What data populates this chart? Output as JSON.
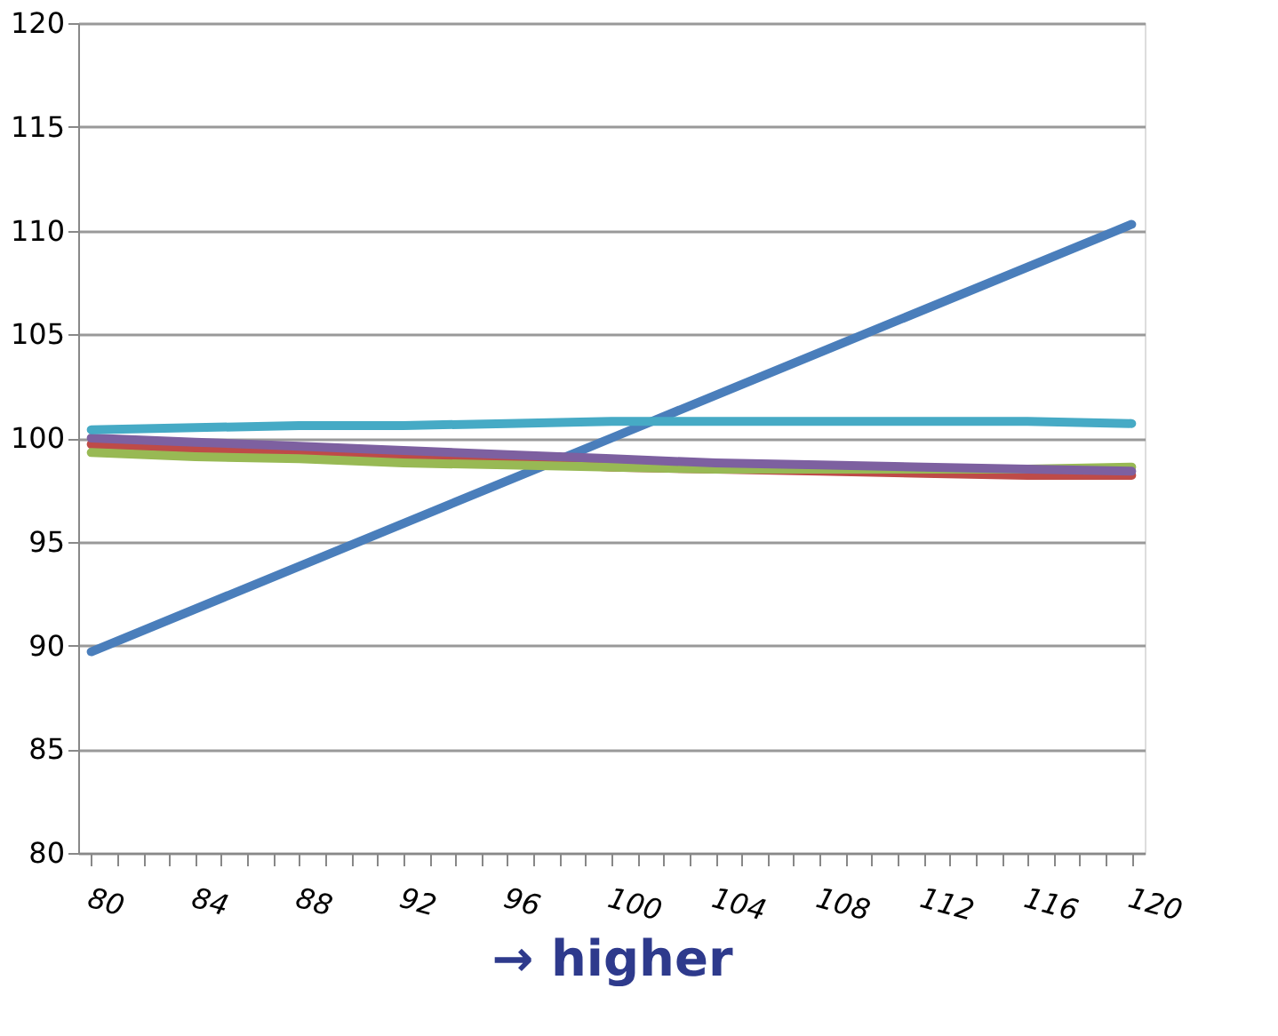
{
  "chart_data": {
    "type": "line",
    "xlabel": "→ higher",
    "xlim": [
      79.5,
      120.5
    ],
    "ylim": [
      80,
      120
    ],
    "yticks": [
      80,
      85,
      90,
      95,
      100,
      105,
      110,
      115,
      120
    ],
    "xticks": [
      80,
      {
        "value": 81,
        "label": null
      },
      {
        "value": 82,
        "label": null
      },
      {
        "value": 83,
        "label": null
      },
      84,
      {
        "value": 85,
        "label": null
      },
      {
        "value": 86,
        "label": null
      },
      {
        "value": 87,
        "label": null
      },
      88,
      {
        "value": 89,
        "label": null
      },
      {
        "value": 90,
        "label": null
      },
      {
        "value": 91,
        "label": null
      },
      92,
      {
        "value": 93,
        "label": null
      },
      {
        "value": 94,
        "label": null
      },
      {
        "value": 95,
        "label": null
      },
      96,
      {
        "value": 97,
        "label": null
      },
      {
        "value": 98,
        "label": null
      },
      {
        "value": 99,
        "label": null
      },
      100,
      {
        "value": 101,
        "label": null
      },
      {
        "value": 102,
        "label": null
      },
      {
        "value": 103,
        "label": null
      },
      104,
      {
        "value": 105,
        "label": null
      },
      {
        "value": 106,
        "label": null
      },
      {
        "value": 107,
        "label": null
      },
      108,
      {
        "value": 109,
        "label": null
      },
      {
        "value": 110,
        "label": null
      },
      {
        "value": 111,
        "label": null
      },
      112,
      {
        "value": 113,
        "label": null
      },
      {
        "value": 114,
        "label": null
      },
      {
        "value": 115,
        "label": null
      },
      116,
      {
        "value": 117,
        "label": null
      },
      {
        "value": 118,
        "label": null
      },
      {
        "value": 119,
        "label": null
      },
      120
    ],
    "grid": "y",
    "legend": false,
    "marker": "none",
    "line_style": "solid",
    "series": [
      {
        "color": "#4a7ebb",
        "x": [
          80,
          100,
          120
        ],
        "values": [
          89.7,
          100.0,
          110.3
        ]
      },
      {
        "color": "#be4b48",
        "x": [
          80,
          84,
          88,
          92,
          96,
          100,
          104,
          108,
          112,
          116,
          120
        ],
        "values": [
          99.7,
          99.5,
          99.3,
          99.1,
          98.9,
          98.6,
          98.5,
          98.4,
          98.3,
          98.2,
          98.2
        ]
      },
      {
        "color": "#98b954",
        "x": [
          80,
          84,
          88,
          92,
          96,
          100,
          104,
          108,
          112,
          116,
          120
        ],
        "values": [
          99.3,
          99.1,
          99.0,
          98.8,
          98.7,
          98.6,
          98.5,
          98.5,
          98.5,
          98.5,
          98.6
        ]
      },
      {
        "color": "#7d60a0",
        "x": [
          80,
          84,
          88,
          92,
          96,
          100,
          104,
          108,
          112,
          116,
          120
        ],
        "values": [
          100.0,
          99.8,
          99.6,
          99.4,
          99.2,
          99.0,
          98.8,
          98.7,
          98.6,
          98.5,
          98.4
        ]
      },
      {
        "color": "#46aac5",
        "x": [
          80,
          84,
          88,
          92,
          96,
          100,
          104,
          108,
          112,
          116,
          120
        ],
        "values": [
          100.4,
          100.5,
          100.6,
          100.6,
          100.7,
          100.8,
          100.8,
          100.8,
          100.8,
          100.8,
          100.7
        ]
      }
    ]
  }
}
